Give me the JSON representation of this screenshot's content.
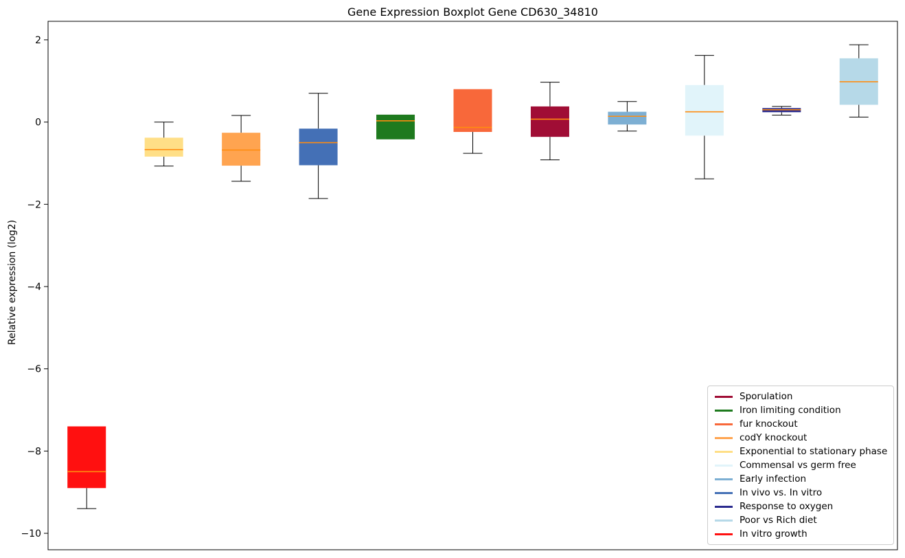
{
  "chart_data": {
    "type": "boxplot",
    "title": "Gene Expression Boxplot Gene CD630_34810",
    "ylabel": "Relative expression (log2)",
    "xlabel": "",
    "ylim": [
      -10.4,
      2.45
    ],
    "grid": false,
    "yticks": [
      {
        "value": 2,
        "label": "2"
      },
      {
        "value": 0,
        "label": "0"
      },
      {
        "value": -2,
        "label": "−2"
      },
      {
        "value": -4,
        "label": "−4"
      },
      {
        "value": -6,
        "label": "−6"
      },
      {
        "value": -8,
        "label": "−8"
      },
      {
        "value": -10,
        "label": "−10"
      }
    ],
    "median_color": "#ff8c10",
    "whisker_color": "#000000",
    "series": [
      {
        "name": "In vitro growth",
        "color": "#ff1010",
        "whisker_low": -9.4,
        "q1": -8.9,
        "median": -8.5,
        "q3": -7.4,
        "whisker_high": -7.4
      },
      {
        "name": "Exponential to stationary phase",
        "color": "#ffdf87",
        "whisker_low": -1.07,
        "q1": -0.84,
        "median": -0.67,
        "q3": -0.38,
        "whisker_high": 0.0
      },
      {
        "name": "codY knockout",
        "color": "#ffa450",
        "whisker_low": -1.44,
        "q1": -1.06,
        "median": -0.68,
        "q3": -0.26,
        "whisker_high": 0.16
      },
      {
        "name": "In vivo vs. In vitro",
        "color": "#4470b6",
        "whisker_low": -1.86,
        "q1": -1.05,
        "median": -0.5,
        "q3": -0.16,
        "whisker_high": 0.7
      },
      {
        "name": "Iron limiting condition",
        "color": "#1e7a1e",
        "whisker_low": -0.42,
        "q1": -0.42,
        "median": 0.03,
        "q3": 0.18,
        "whisker_high": 0.18
      },
      {
        "name": "fur knockout",
        "color": "#f8683a",
        "whisker_low": -0.76,
        "q1": -0.24,
        "median": -0.13,
        "q3": 0.8,
        "whisker_high": 0.8
      },
      {
        "name": "Sporulation",
        "color": "#a00d35",
        "whisker_low": -0.92,
        "q1": -0.36,
        "median": 0.07,
        "q3": 0.38,
        "whisker_high": 0.97
      },
      {
        "name": "Early infection",
        "color": "#7dafd3",
        "whisker_low": -0.22,
        "q1": -0.06,
        "median": 0.14,
        "q3": 0.25,
        "whisker_high": 0.5
      },
      {
        "name": "Commensal vs germ free",
        "color": "#e1f4fa",
        "whisker_low": -1.38,
        "q1": -0.33,
        "median": 0.25,
        "q3": 0.9,
        "whisker_high": 1.62
      },
      {
        "name": "Response to oxygen",
        "color": "#2a2a8e",
        "whisker_low": 0.17,
        "q1": 0.24,
        "median": 0.3,
        "q3": 0.34,
        "whisker_high": 0.38
      },
      {
        "name": "Poor vs Rich diet",
        "color": "#b6d9e8",
        "whisker_low": 0.12,
        "q1": 0.42,
        "median": 0.98,
        "q3": 1.55,
        "whisker_high": 1.88
      }
    ],
    "legend": {
      "position": "lower right",
      "entries": [
        {
          "label": "Sporulation",
          "color": "#a00d35"
        },
        {
          "label": "Iron limiting condition",
          "color": "#1e7a1e"
        },
        {
          "label": "fur knockout",
          "color": "#f8683a"
        },
        {
          "label": "codY knockout",
          "color": "#ffa450"
        },
        {
          "label": "Exponential to stationary phase",
          "color": "#ffdf87"
        },
        {
          "label": "Commensal vs germ free",
          "color": "#e1f4fa"
        },
        {
          "label": "Early infection",
          "color": "#7dafd3"
        },
        {
          "label": "In vivo vs. In vitro",
          "color": "#4470b6"
        },
        {
          "label": "Response to oxygen",
          "color": "#2a2a8e"
        },
        {
          "label": "Poor vs Rich diet",
          "color": "#b6d9e8"
        },
        {
          "label": "In vitro growth",
          "color": "#ff1010"
        }
      ]
    }
  }
}
